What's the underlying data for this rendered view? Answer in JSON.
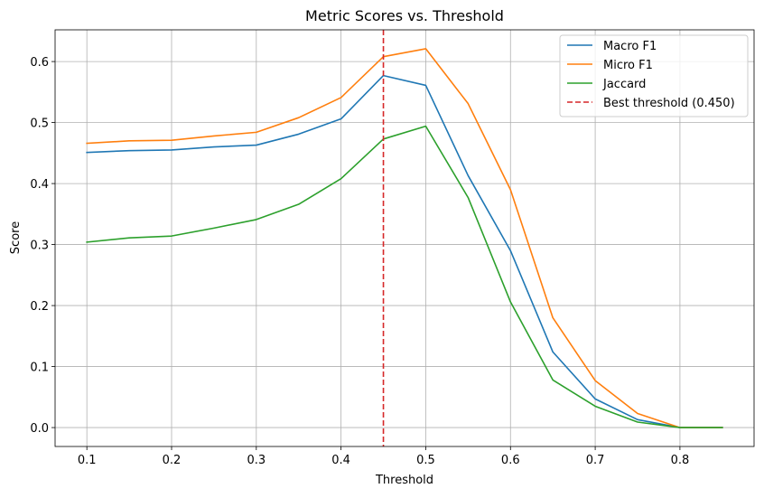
{
  "chart_data": {
    "type": "line",
    "title": "Metric Scores vs. Threshold",
    "xlabel": "Threshold",
    "ylabel": "Score",
    "xlim": [
      0.0625,
      0.8875
    ],
    "ylim": [
      -0.031,
      0.652
    ],
    "xticks": [
      0.1,
      0.2,
      0.3,
      0.4,
      0.5,
      0.6,
      0.7,
      0.8
    ],
    "xtick_labels": [
      "0.1",
      "0.2",
      "0.3",
      "0.4",
      "0.5",
      "0.6",
      "0.7",
      "0.8"
    ],
    "yticks": [
      0.0,
      0.1,
      0.2,
      0.3,
      0.4,
      0.5,
      0.6
    ],
    "ytick_labels": [
      "0.0",
      "0.1",
      "0.2",
      "0.3",
      "0.4",
      "0.5",
      "0.6"
    ],
    "grid": true,
    "legend_position": "top-right",
    "x": [
      0.1,
      0.15,
      0.2,
      0.25,
      0.3,
      0.35,
      0.4,
      0.45,
      0.5,
      0.55,
      0.6,
      0.65,
      0.7,
      0.75,
      0.8,
      0.85
    ],
    "series": [
      {
        "name": "Macro F1",
        "color": "#1f77b4",
        "values": [
          0.451,
          0.454,
          0.455,
          0.46,
          0.463,
          0.481,
          0.506,
          0.577,
          0.561,
          0.413,
          0.29,
          0.124,
          0.047,
          0.013,
          0.0,
          0.0
        ]
      },
      {
        "name": "Micro F1",
        "color": "#ff7f0e",
        "values": [
          0.466,
          0.47,
          0.471,
          0.478,
          0.484,
          0.508,
          0.541,
          0.608,
          0.621,
          0.531,
          0.39,
          0.18,
          0.077,
          0.023,
          0.0,
          0.0
        ]
      },
      {
        "name": "Jaccard",
        "color": "#2ca02c",
        "values": [
          0.304,
          0.311,
          0.314,
          0.327,
          0.341,
          0.366,
          0.408,
          0.473,
          0.494,
          0.377,
          0.206,
          0.078,
          0.035,
          0.009,
          0.0,
          0.0
        ]
      }
    ],
    "reference_line": {
      "name": "Best threshold (0.450)",
      "x": 0.45,
      "color": "#d62728",
      "style": "dashed"
    },
    "colors": {
      "grid": "#b0b0b0",
      "axes": "#000000",
      "background": "#ffffff"
    }
  }
}
